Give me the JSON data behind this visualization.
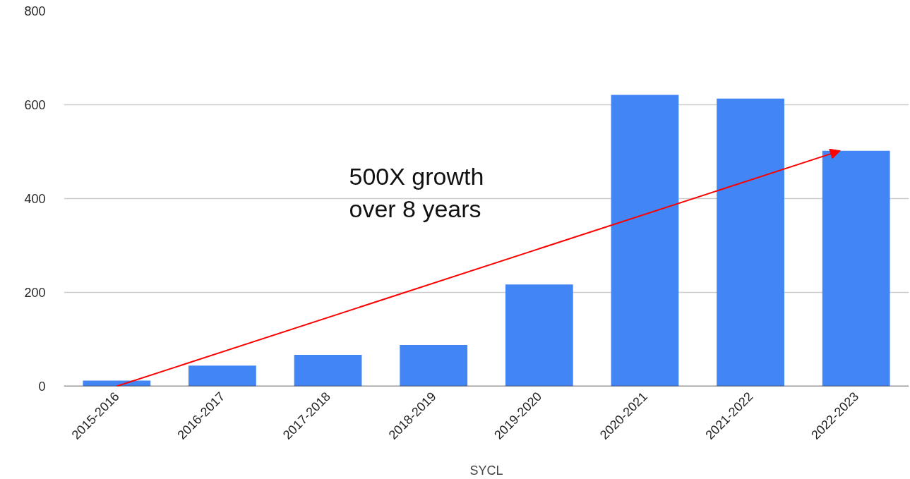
{
  "chart_data": {
    "type": "bar",
    "xlabel": "SYCL",
    "categories": [
      "2015-2016",
      "2016-2017",
      "2017-2018",
      "2018-2019",
      "2019-2020",
      "2020-2021",
      "2021-2022",
      "2022-2023"
    ],
    "values": [
      12,
      44,
      67,
      88,
      217,
      621,
      613,
      502
    ],
    "color": "#4285f4",
    "ylim": [
      0,
      800
    ],
    "yticks": [
      0,
      200,
      400,
      600,
      800
    ],
    "grid": "y",
    "annotations": [
      "500X growth\nover 8 years"
    ]
  }
}
